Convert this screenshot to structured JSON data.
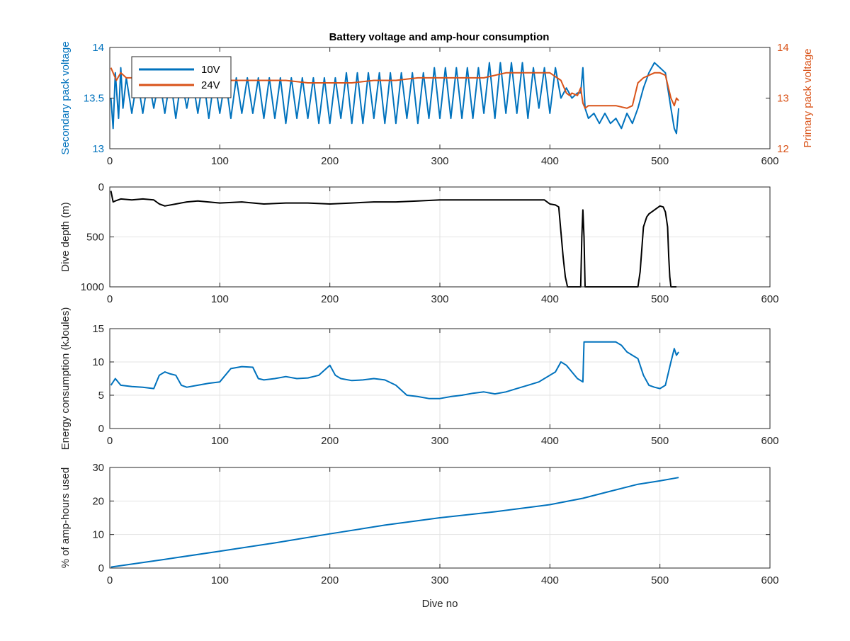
{
  "figure": {
    "title": "Battery voltage and amp-hour consumption"
  },
  "chart_data": [
    {
      "type": "line",
      "title": "Battery voltage and amp-hour consumption",
      "xlabel": "",
      "ylabel": "Secondary pack voltage",
      "ylabel_right": "Primary pack voltage",
      "xlim": [
        0,
        600
      ],
      "ylim": [
        13,
        14
      ],
      "ylim_right": [
        12,
        14
      ],
      "xticks": [
        0,
        100,
        200,
        300,
        400,
        500,
        600
      ],
      "yticks": [
        13,
        13.5,
        14
      ],
      "yticks_right": [
        12,
        13,
        14
      ],
      "grid": false,
      "legend": {
        "placement": "top-left",
        "entries": [
          "10V",
          "24V"
        ]
      },
      "series": [
        {
          "name": "10V",
          "axis": "left",
          "color": "#0072BD",
          "x": [
            1,
            3,
            5,
            8,
            10,
            12,
            15,
            20,
            25,
            30,
            35,
            40,
            45,
            50,
            55,
            60,
            65,
            70,
            75,
            80,
            85,
            90,
            95,
            100,
            105,
            110,
            115,
            120,
            125,
            130,
            135,
            140,
            145,
            150,
            155,
            160,
            165,
            170,
            175,
            180,
            185,
            190,
            195,
            200,
            205,
            210,
            215,
            220,
            225,
            230,
            235,
            240,
            245,
            250,
            255,
            260,
            265,
            270,
            275,
            280,
            285,
            290,
            295,
            300,
            305,
            310,
            315,
            320,
            325,
            330,
            335,
            340,
            345,
            350,
            355,
            360,
            365,
            370,
            375,
            380,
            385,
            390,
            395,
            400,
            405,
            410,
            415,
            420,
            425,
            428,
            430,
            432,
            435,
            440,
            445,
            450,
            455,
            460,
            465,
            470,
            475,
            480,
            485,
            490,
            495,
            500,
            505,
            510,
            513,
            515,
            517
          ],
          "y": [
            13.5,
            13.2,
            13.75,
            13.3,
            13.8,
            13.4,
            13.7,
            13.35,
            13.7,
            13.35,
            13.7,
            13.4,
            13.7,
            13.35,
            13.7,
            13.3,
            13.7,
            13.4,
            13.7,
            13.35,
            13.7,
            13.3,
            13.7,
            13.35,
            13.7,
            13.3,
            13.7,
            13.35,
            13.7,
            13.35,
            13.7,
            13.3,
            13.7,
            13.3,
            13.7,
            13.25,
            13.7,
            13.3,
            13.7,
            13.3,
            13.7,
            13.25,
            13.7,
            13.25,
            13.7,
            13.3,
            13.75,
            13.25,
            13.75,
            13.25,
            13.75,
            13.3,
            13.75,
            13.25,
            13.75,
            13.25,
            13.75,
            13.3,
            13.75,
            13.25,
            13.75,
            13.3,
            13.8,
            13.3,
            13.8,
            13.3,
            13.8,
            13.3,
            13.8,
            13.3,
            13.8,
            13.35,
            13.85,
            13.3,
            13.85,
            13.35,
            13.85,
            13.35,
            13.85,
            13.3,
            13.8,
            13.4,
            13.8,
            13.35,
            13.8,
            13.5,
            13.6,
            13.5,
            13.55,
            13.55,
            13.8,
            13.4,
            13.3,
            13.35,
            13.25,
            13.35,
            13.25,
            13.3,
            13.2,
            13.35,
            13.25,
            13.4,
            13.6,
            13.75,
            13.85,
            13.8,
            13.75,
            13.4,
            13.2,
            13.15,
            13.4
          ]
        },
        {
          "name": "24V",
          "axis": "right",
          "color": "#D95319",
          "x": [
            1,
            3,
            6,
            10,
            15,
            20,
            30,
            40,
            50,
            60,
            80,
            100,
            120,
            140,
            160,
            180,
            200,
            220,
            240,
            260,
            280,
            300,
            320,
            340,
            360,
            380,
            400,
            410,
            415,
            418,
            420,
            425,
            428,
            430,
            432,
            435,
            440,
            450,
            460,
            470,
            475,
            480,
            485,
            490,
            495,
            500,
            505,
            510,
            513,
            515,
            517
          ],
          "y": [
            13.6,
            13.5,
            13.35,
            13.5,
            13.4,
            13.4,
            13.4,
            13.45,
            13.4,
            13.4,
            13.4,
            13.35,
            13.35,
            13.35,
            13.35,
            13.3,
            13.3,
            13.3,
            13.35,
            13.35,
            13.4,
            13.4,
            13.4,
            13.4,
            13.5,
            13.5,
            13.5,
            13.35,
            13.1,
            13.05,
            13.1,
            13.05,
            13.2,
            12.9,
            12.8,
            12.85,
            12.85,
            12.85,
            12.85,
            12.8,
            12.85,
            13.3,
            13.4,
            13.45,
            13.5,
            13.5,
            13.45,
            13.0,
            12.85,
            13.0,
            12.95
          ]
        }
      ]
    },
    {
      "type": "line",
      "xlabel": "",
      "ylabel": "Dive depth (m)",
      "xlim": [
        0,
        600
      ],
      "ylim": [
        0,
        1000
      ],
      "y_reversed": true,
      "xticks": [
        0,
        100,
        200,
        300,
        400,
        500,
        600
      ],
      "yticks": [
        0,
        500,
        1000
      ],
      "grid": true,
      "series": [
        {
          "color": "#000000",
          "x": [
            1,
            3,
            5,
            10,
            20,
            30,
            40,
            45,
            50,
            60,
            70,
            80,
            100,
            120,
            140,
            160,
            180,
            200,
            220,
            240,
            260,
            280,
            300,
            320,
            340,
            360,
            380,
            395,
            400,
            405,
            408,
            410,
            412,
            414,
            416,
            418,
            420,
            425,
            428,
            429,
            430,
            431,
            432,
            433,
            435,
            440,
            450,
            460,
            470,
            475,
            478,
            480,
            482,
            485,
            488,
            490,
            495,
            500,
            503,
            505,
            507,
            508,
            509,
            510,
            512,
            515
          ],
          "y": [
            40,
            150,
            140,
            120,
            130,
            120,
            130,
            170,
            190,
            170,
            150,
            140,
            160,
            150,
            170,
            160,
            160,
            170,
            160,
            150,
            150,
            140,
            130,
            130,
            130,
            130,
            130,
            130,
            170,
            180,
            200,
            450,
            700,
            900,
            1000,
            1000,
            1000,
            1000,
            1000,
            500,
            230,
            500,
            1000,
            1000,
            1000,
            1000,
            1000,
            1000,
            1000,
            1000,
            1000,
            1000,
            850,
            400,
            300,
            270,
            230,
            190,
            200,
            250,
            400,
            700,
            900,
            1000,
            1000,
            1000
          ]
        }
      ]
    },
    {
      "type": "line",
      "xlabel": "",
      "ylabel": "Energy consumption (kJoules)",
      "xlim": [
        0,
        600
      ],
      "ylim": [
        0,
        15
      ],
      "xticks": [
        0,
        100,
        200,
        300,
        400,
        500,
        600
      ],
      "yticks": [
        0,
        5,
        10,
        15
      ],
      "grid": true,
      "series": [
        {
          "color": "#0072BD",
          "x": [
            1,
            5,
            10,
            20,
            30,
            40,
            45,
            50,
            55,
            60,
            65,
            70,
            80,
            90,
            100,
            110,
            120,
            130,
            135,
            140,
            150,
            160,
            170,
            180,
            190,
            200,
            205,
            210,
            220,
            230,
            240,
            250,
            260,
            270,
            280,
            290,
            300,
            310,
            320,
            330,
            340,
            350,
            360,
            370,
            380,
            390,
            400,
            405,
            410,
            415,
            420,
            425,
            430,
            431,
            435,
            440,
            450,
            460,
            465,
            470,
            475,
            480,
            485,
            490,
            495,
            500,
            505,
            510,
            513,
            515,
            517
          ],
          "y": [
            6.5,
            7.5,
            6.5,
            6.3,
            6.2,
            6.0,
            8.0,
            8.5,
            8.2,
            8.0,
            6.5,
            6.2,
            6.5,
            6.8,
            7.0,
            9.0,
            9.3,
            9.2,
            7.5,
            7.3,
            7.5,
            7.8,
            7.5,
            7.6,
            8.0,
            9.5,
            8.0,
            7.5,
            7.2,
            7.3,
            7.5,
            7.3,
            6.5,
            5.0,
            4.8,
            4.5,
            4.5,
            4.8,
            5.0,
            5.3,
            5.5,
            5.2,
            5.5,
            6.0,
            6.5,
            7.0,
            8.0,
            8.5,
            10.0,
            9.5,
            8.5,
            7.5,
            7.0,
            13.0,
            13.0,
            13.0,
            13.0,
            13.0,
            12.5,
            11.5,
            11.0,
            10.5,
            8.0,
            6.5,
            6.2,
            6.0,
            6.5,
            10.0,
            12.0,
            11.0,
            11.5
          ]
        }
      ]
    },
    {
      "type": "line",
      "xlabel": "Dive no",
      "ylabel": "% of amp-hours used",
      "xlim": [
        0,
        600
      ],
      "ylim": [
        0,
        30
      ],
      "xticks": [
        0,
        100,
        200,
        300,
        400,
        500,
        600
      ],
      "yticks": [
        0,
        10,
        20,
        30
      ],
      "grid": true,
      "series": [
        {
          "color": "#0072BD",
          "x": [
            1,
            50,
            100,
            150,
            200,
            250,
            300,
            350,
            400,
            430,
            450,
            480,
            500,
            517
          ],
          "y": [
            0.3,
            2.6,
            5.0,
            7.5,
            10.2,
            12.8,
            15.0,
            16.8,
            18.9,
            20.8,
            22.5,
            25.0,
            26.0,
            27.0
          ]
        }
      ]
    }
  ]
}
